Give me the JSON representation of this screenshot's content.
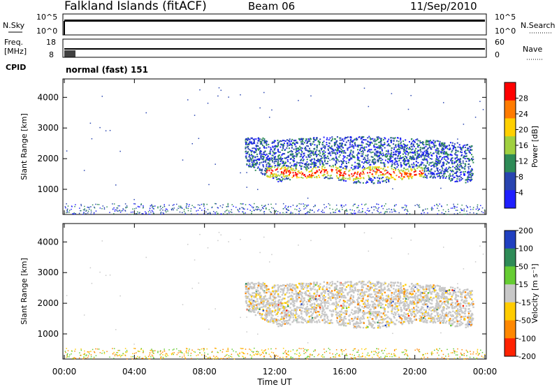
{
  "header": {
    "station": "Falkland Islands (fitACF)",
    "beam": "Beam 06",
    "date": "11/Sep/2010"
  },
  "noise_panel": {
    "left_label": "N.Sky",
    "right_label": "N.Search",
    "left_ticks": [
      "10^5",
      "10^0"
    ],
    "right_ticks": [
      "10^5",
      "10^0"
    ]
  },
  "freq_panel": {
    "left_label_1": "Freq.",
    "left_label_2": "[MHz]",
    "right_label": "Nave",
    "left_ticks": [
      "18",
      "8"
    ],
    "right_ticks": [
      "60",
      "0"
    ]
  },
  "cpid": {
    "label": "CPID",
    "value": "normal (fast) 151"
  },
  "x_axis": {
    "label": "Time UT",
    "ticks": [
      "00:00",
      "04:00",
      "08:00",
      "12:00",
      "16:00",
      "20:00",
      "00:00"
    ]
  },
  "chart_data": [
    {
      "type": "heatmap",
      "quantity": "Power",
      "ylabel": "Slant Range [km]",
      "xlabel": "Time UT",
      "x_ticks": [
        "00:00",
        "04:00",
        "08:00",
        "12:00",
        "16:00",
        "20:00",
        "00:00"
      ],
      "y_ticks": [
        1000,
        2000,
        3000,
        4000
      ],
      "ylim": [
        180,
        4600
      ],
      "xlim_hours": [
        0,
        24
      ],
      "colorbar": {
        "label": "Power [dB]",
        "ticks": [
          "28",
          "24",
          "20",
          "16",
          "12",
          "8",
          "4"
        ],
        "colors": [
          "#ff0000",
          "#ff7b00",
          "#ffd000",
          "#a0d040",
          "#2e8b57",
          "#2844b0",
          "#1f1fff"
        ]
      }
    },
    {
      "type": "heatmap",
      "quantity": "Velocity",
      "ylabel": "Slant Range [km]",
      "xlabel": "Time UT",
      "x_ticks": [
        "00:00",
        "04:00",
        "08:00",
        "12:00",
        "16:00",
        "20:00",
        "00:00"
      ],
      "y_ticks": [
        1000,
        2000,
        3000,
        4000
      ],
      "ylim": [
        180,
        4600
      ],
      "xlim_hours": [
        0,
        24
      ],
      "colorbar": {
        "label": "Velocity [m s⁻¹]",
        "ticks": [
          "200",
          "100",
          "50",
          "15",
          "-15",
          "-50",
          "-100",
          "-200"
        ],
        "colors": [
          "#2040c0",
          "#2e8b57",
          "#66cc33",
          "#c8c8c8",
          "#ffcc00",
          "#ff8800",
          "#ff2200"
        ]
      }
    }
  ]
}
